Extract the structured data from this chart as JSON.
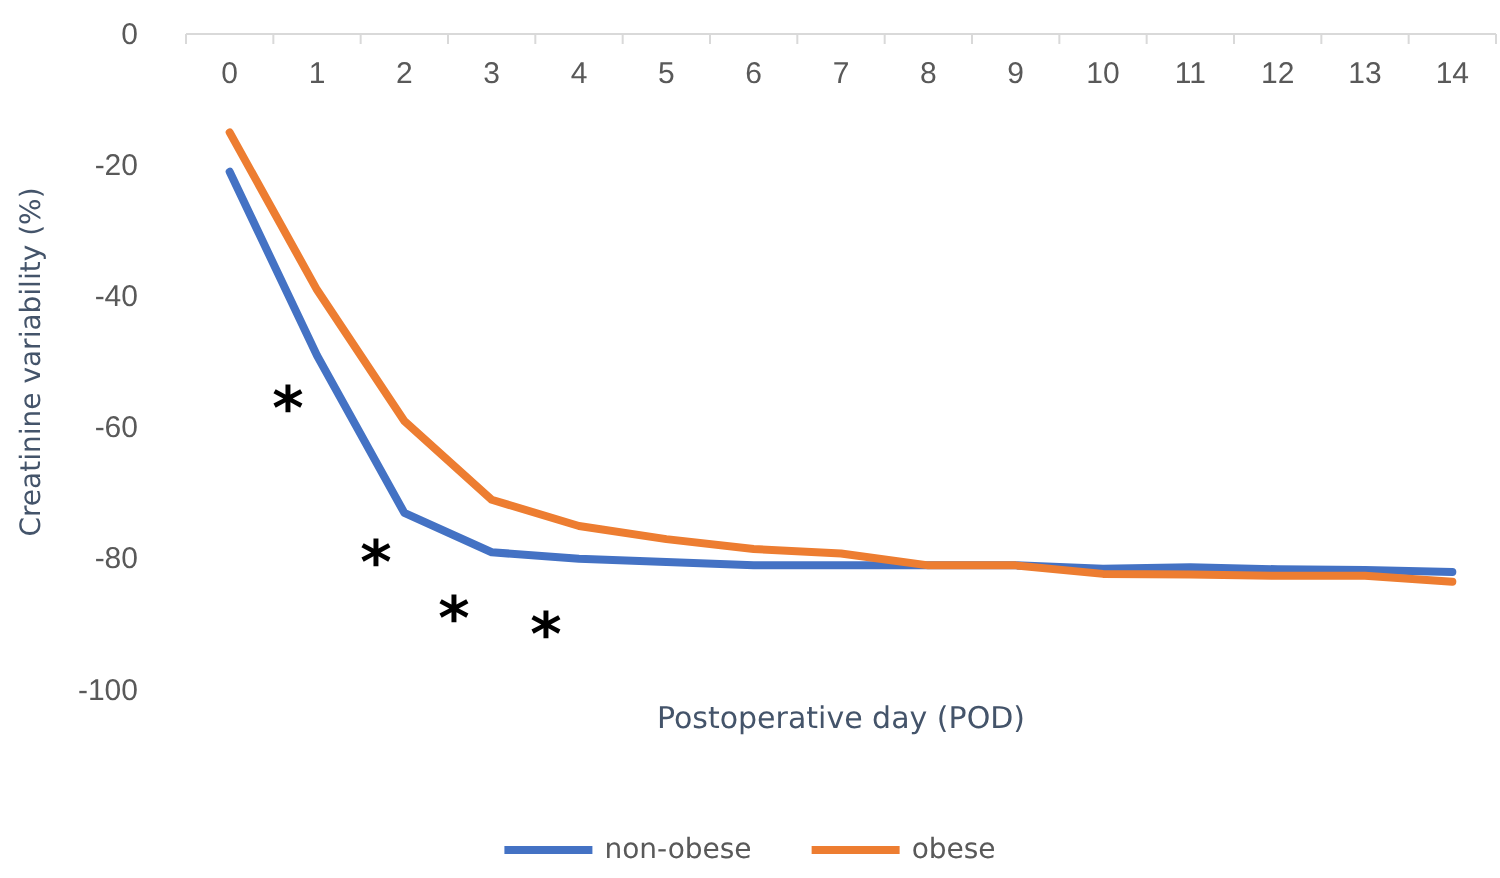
{
  "chart_data": {
    "type": "line",
    "xlabel": "Postoperative day (POD)",
    "ylabel": "Creatinine variability (%)",
    "x": [
      0,
      1,
      2,
      3,
      4,
      5,
      6,
      7,
      8,
      9,
      10,
      11,
      12,
      13,
      14
    ],
    "series": [
      {
        "name": "non-obese",
        "color": "#4472c4",
        "values": [
          -21,
          -49,
          -73,
          -79,
          -80,
          -80.5,
          -81,
          -81,
          -81,
          -81,
          -81.5,
          -81.3,
          -81.6,
          -81.7,
          -82
        ]
      },
      {
        "name": "obese",
        "color": "#ed7d31",
        "values": [
          -15,
          -39,
          -59,
          -71,
          -75,
          -77,
          -78.5,
          -79.2,
          -81,
          -81,
          -82.3,
          -82.4,
          -82.6,
          -82.6,
          -83.5
        ]
      }
    ],
    "xlim": [
      -0.5,
      14.5
    ],
    "xticks": [
      0,
      1,
      2,
      3,
      4,
      5,
      6,
      7,
      8,
      9,
      10,
      11,
      12,
      13,
      14
    ],
    "ylim": [
      -100,
      0
    ],
    "yticks": [
      -100,
      -80,
      -60,
      -40,
      -20,
      0
    ],
    "annotations": [
      "*",
      "*",
      "*",
      "*"
    ],
    "grid": false,
    "legend": "bottom",
    "marker": "none",
    "line_style": "solid"
  }
}
